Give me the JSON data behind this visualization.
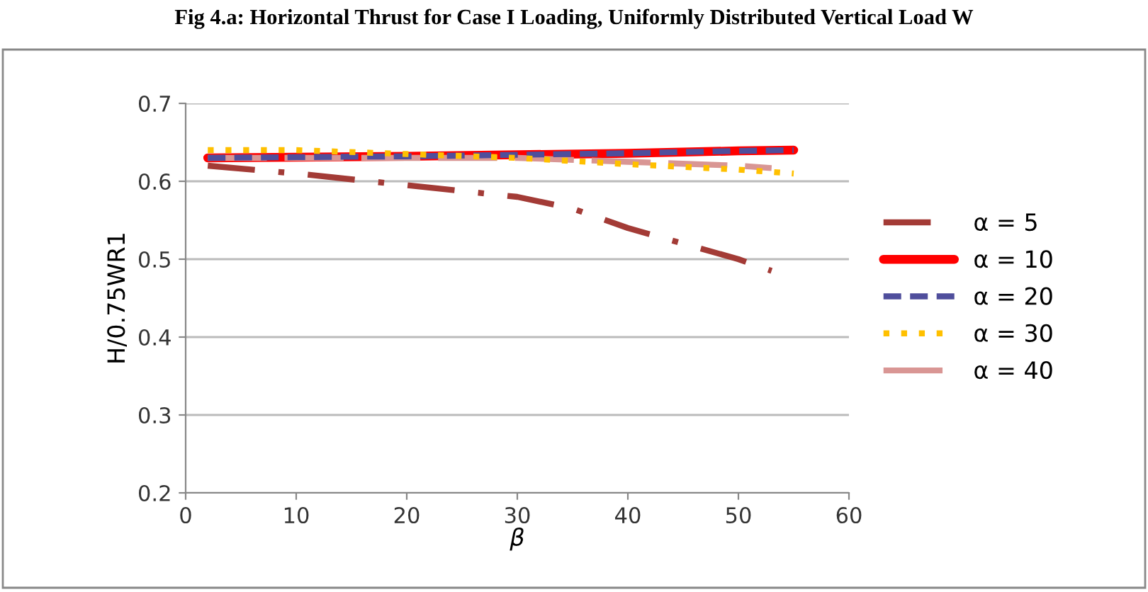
{
  "chart_data": {
    "type": "line",
    "title": "Fig 4.a: Horizontal Thrust for Case I Loading, Uniformly Distributed Vertical Load W",
    "xlabel": "β",
    "ylabel": "H/0.75WR1",
    "xlim": [
      0,
      60
    ],
    "xticks": [
      0,
      10,
      20,
      30,
      40,
      50,
      60
    ],
    "ylim": [
      0.2,
      0.7
    ],
    "yticks": [
      0.2,
      0.3,
      0.4,
      0.5,
      0.6,
      0.7
    ],
    "grid": "y",
    "legend": "right",
    "marker": "none",
    "series": [
      {
        "name": "α = 5",
        "color": "#a33b36",
        "line_style": "dashdot",
        "x": [
          2,
          10,
          20,
          30,
          35,
          40,
          50,
          53
        ],
        "values": [
          0.62,
          0.61,
          0.595,
          0.58,
          0.565,
          0.54,
          0.5,
          0.485
        ]
      },
      {
        "name": "α = 10",
        "color": "#ff0000",
        "line_style": "solid",
        "x": [
          2,
          10,
          20,
          30,
          40,
          50,
          55
        ],
        "values": [
          0.63,
          0.631,
          0.632,
          0.634,
          0.636,
          0.639,
          0.64
        ]
      },
      {
        "name": "α = 20",
        "color": "#4f4e9c",
        "line_style": "dashed",
        "x": [
          2,
          10,
          20,
          30,
          40,
          50,
          55
        ],
        "values": [
          0.63,
          0.631,
          0.632,
          0.634,
          0.636,
          0.639,
          0.64
        ]
      },
      {
        "name": "α = 30",
        "color": "#ffc000",
        "line_style": "dotted",
        "x": [
          2,
          10,
          20,
          30,
          40,
          50,
          55
        ],
        "values": [
          0.64,
          0.64,
          0.635,
          0.63,
          0.622,
          0.615,
          0.61
        ]
      },
      {
        "name": "α = 40",
        "color": "#d99694",
        "line_style": "longdash",
        "x": [
          2,
          10,
          20,
          30,
          40,
          50,
          53
        ],
        "values": [
          0.63,
          0.63,
          0.63,
          0.63,
          0.625,
          0.62,
          0.617
        ]
      }
    ]
  }
}
